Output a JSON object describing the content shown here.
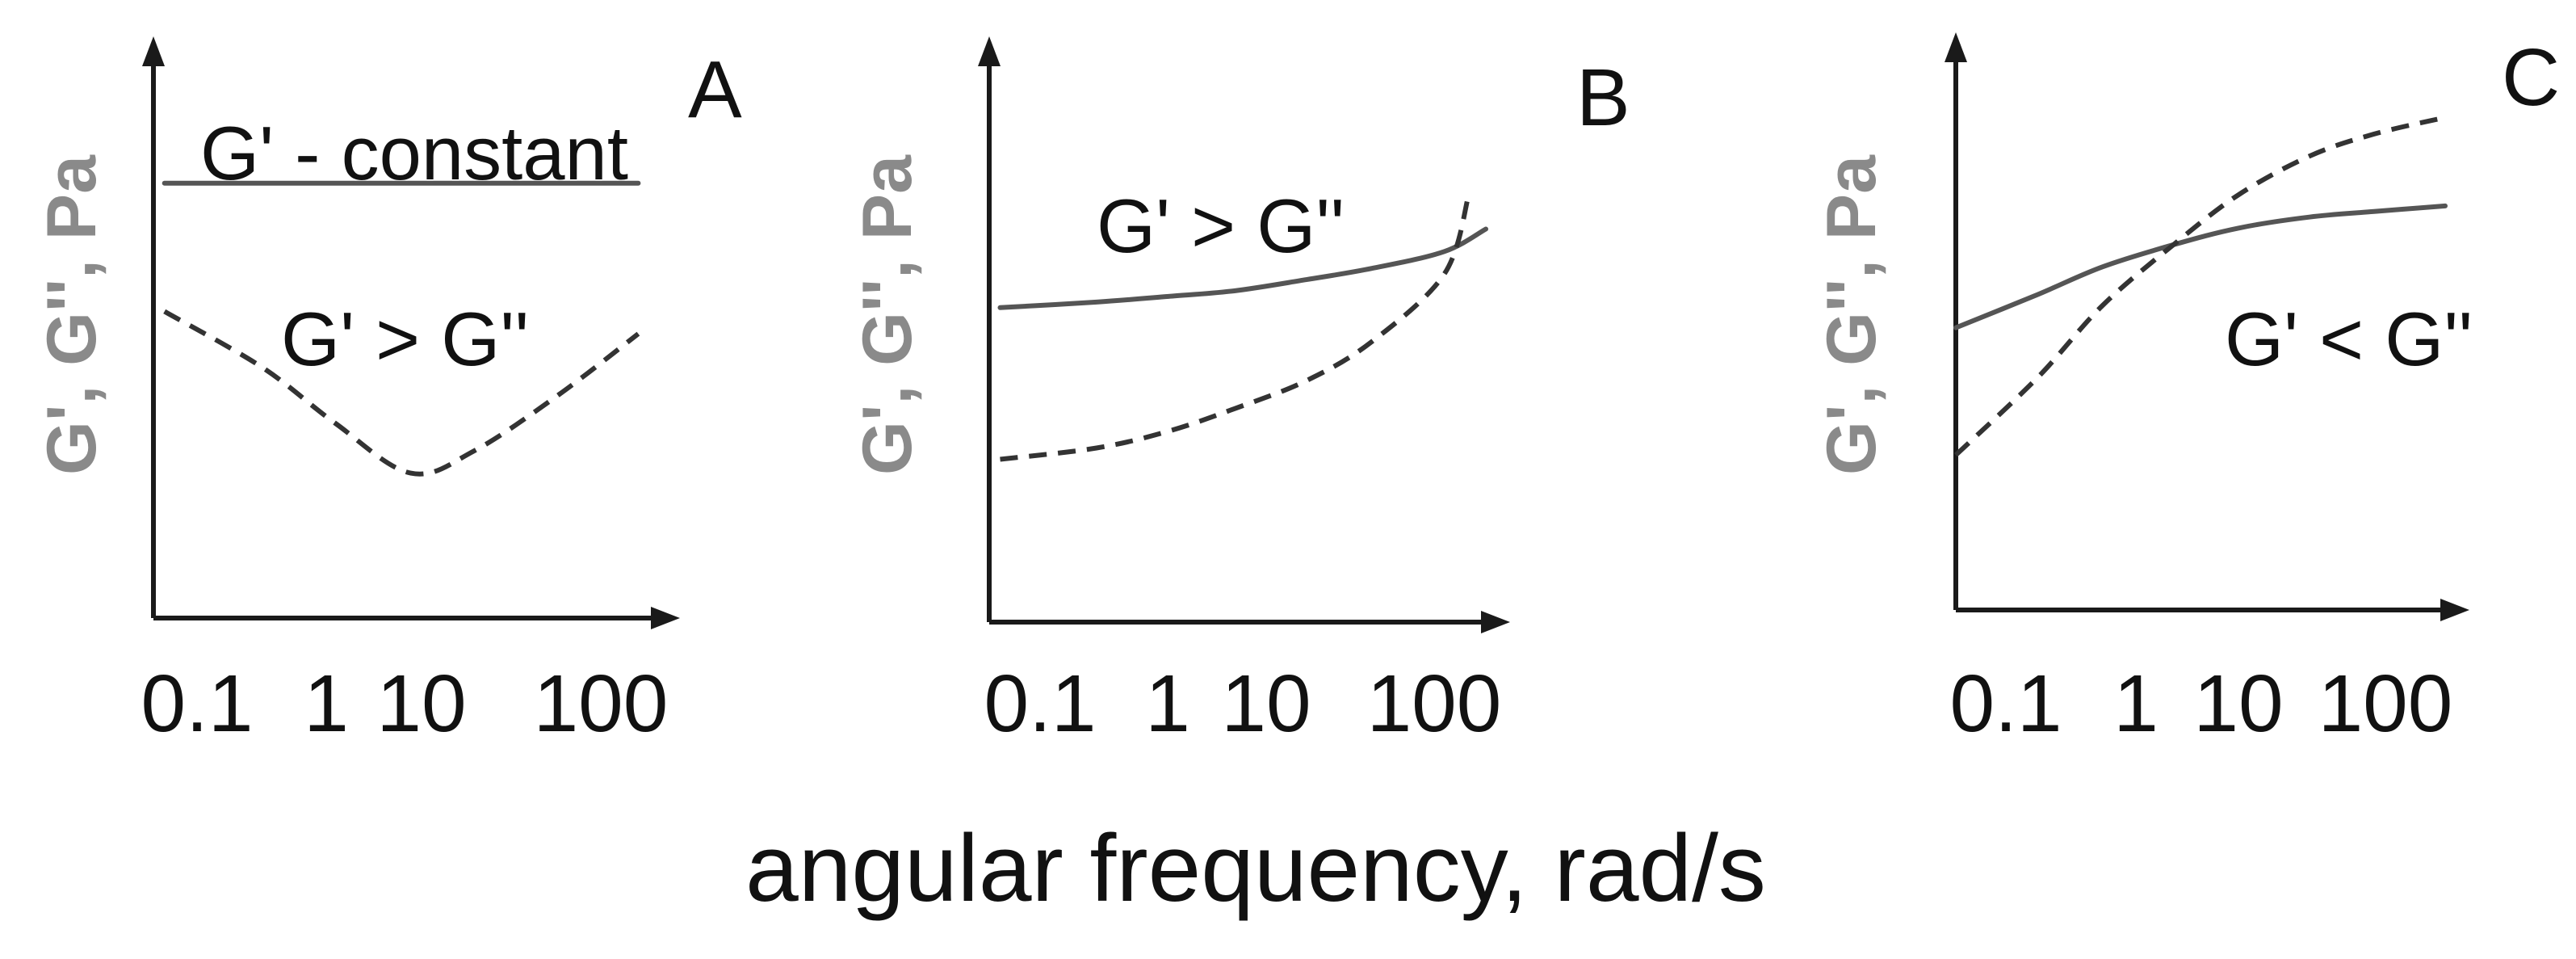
{
  "figure": {
    "xlabel": "angular frequency, rad/s",
    "colors": {
      "axis": "#1a1a1a",
      "ylabel": "#8a8a8a",
      "storage_modulus": "#555555",
      "loss_modulus": "#333333"
    }
  },
  "chart_data": [
    {
      "type": "line",
      "panel": "A",
      "ylabel": "G', G'', Pa",
      "x_ticks": [
        "0.1",
        "1",
        "10",
        "100"
      ],
      "x_scale": "log",
      "xlim": [
        0.05,
        200
      ],
      "annotations": [
        "G' - constant",
        "G' > G''"
      ],
      "grid": false,
      "series": [
        {
          "style": "solid",
          "x": [
            0.06,
            150
          ],
          "values": [
            0.78,
            0.78
          ]
        },
        {
          "style": "dashed",
          "x": [
            0.06,
            0.3,
            1,
            3.5,
            10,
            40,
            150
          ],
          "values": [
            0.55,
            0.45,
            0.35,
            0.26,
            0.3,
            0.4,
            0.51
          ]
        }
      ]
    },
    {
      "type": "line",
      "panel": "B",
      "ylabel": "G', G'', Pa",
      "x_ticks": [
        "0.1",
        "1",
        "10",
        "100"
      ],
      "x_scale": "log",
      "xlim": [
        0.05,
        200
      ],
      "annotations": [
        "G' > G''"
      ],
      "grid": false,
      "series": [
        {
          "style": "solid",
          "x": [
            0.06,
            0.3,
            1,
            3,
            10,
            30,
            100,
            200
          ],
          "values": [
            0.56,
            0.57,
            0.58,
            0.59,
            0.61,
            0.63,
            0.66,
            0.7
          ]
        },
        {
          "style": "dashed",
          "x": [
            0.06,
            0.3,
            1,
            3,
            10,
            30,
            100,
            150
          ],
          "values": [
            0.29,
            0.31,
            0.34,
            0.38,
            0.43,
            0.5,
            0.62,
            0.76
          ]
        }
      ]
    },
    {
      "type": "line",
      "panel": "C",
      "ylabel": "G', G'', Pa",
      "x_ticks": [
        "0.1",
        "1",
        "10",
        "100"
      ],
      "x_scale": "log",
      "xlim": [
        0.05,
        200
      ],
      "annotations": [
        "G' < G''"
      ],
      "grid": false,
      "series": [
        {
          "style": "solid",
          "x": [
            0.05,
            0.2,
            0.6,
            2,
            6,
            20,
            60,
            200
          ],
          "values": [
            0.51,
            0.57,
            0.62,
            0.66,
            0.69,
            0.71,
            0.72,
            0.73
          ]
        },
        {
          "style": "dashed",
          "x": [
            0.05,
            0.2,
            0.6,
            2,
            6,
            20,
            60,
            200
          ],
          "values": [
            0.28,
            0.42,
            0.55,
            0.66,
            0.75,
            0.82,
            0.86,
            0.89
          ]
        }
      ]
    }
  ]
}
